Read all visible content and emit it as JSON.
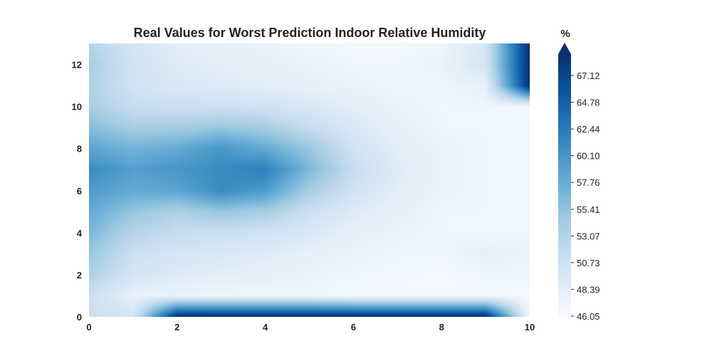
{
  "chart_data": {
    "type": "heatmap",
    "title": "Real Values for Worst Prediction Indoor Relative Humidity",
    "xlabel": "",
    "ylabel": "",
    "xlim": [
      0,
      10
    ],
    "ylim": [
      0,
      13
    ],
    "x_ticks": [
      "0",
      "2",
      "4",
      "6",
      "8",
      "10"
    ],
    "y_ticks": [
      "0",
      "2",
      "4",
      "6",
      "8",
      "10",
      "12"
    ],
    "x": [
      0,
      1,
      2,
      3,
      4,
      5,
      6,
      7,
      8,
      9,
      10
    ],
    "y": [
      0,
      1,
      2,
      3,
      4,
      5,
      6,
      7,
      8,
      9,
      10,
      11,
      12,
      13
    ],
    "z": [
      [
        51.0,
        50.0,
        69.0,
        69.0,
        69.0,
        69.0,
        69.0,
        69.0,
        69.0,
        69.0,
        47.0
      ],
      [
        51.0,
        48.0,
        47.5,
        47.0,
        47.0,
        47.0,
        46.5,
        46.5,
        46.5,
        46.5,
        46.5
      ],
      [
        53.5,
        50.0,
        49.0,
        48.5,
        48.0,
        47.5,
        47.0,
        46.8,
        46.5,
        47.0,
        47.0
      ],
      [
        55.0,
        51.0,
        50.0,
        49.5,
        49.0,
        48.0,
        47.5,
        47.0,
        47.0,
        48.0,
        47.5
      ],
      [
        56.5,
        53.0,
        51.5,
        51.0,
        50.5,
        49.5,
        48.0,
        47.5,
        47.0,
        47.0,
        47.0
      ],
      [
        58.0,
        55.0,
        53.5,
        55.0,
        54.0,
        51.0,
        49.0,
        48.0,
        47.0,
        47.0,
        47.0
      ],
      [
        59.5,
        58.0,
        58.5,
        61.0,
        59.5,
        54.0,
        50.5,
        48.5,
        47.5,
        47.0,
        47.0
      ],
      [
        61.0,
        59.0,
        60.0,
        61.0,
        62.0,
        56.5,
        51.5,
        49.0,
        47.5,
        47.0,
        47.0
      ],
      [
        58.5,
        57.0,
        58.0,
        60.0,
        58.0,
        55.0,
        50.5,
        48.5,
        47.5,
        47.0,
        47.0
      ],
      [
        56.0,
        54.0,
        54.0,
        55.0,
        54.0,
        51.5,
        49.5,
        48.0,
        47.0,
        47.0,
        47.0
      ],
      [
        54.0,
        51.5,
        51.0,
        51.0,
        50.5,
        49.5,
        48.5,
        47.5,
        47.0,
        47.0,
        46.5
      ],
      [
        53.5,
        50.5,
        49.5,
        49.0,
        48.5,
        48.0,
        47.5,
        47.0,
        47.0,
        48.0,
        69.0
      ],
      [
        54.0,
        50.5,
        49.0,
        48.5,
        48.0,
        47.5,
        47.0,
        47.0,
        47.5,
        50.0,
        69.0
      ],
      [
        53.0,
        50.0,
        48.5,
        48.0,
        47.5,
        47.0,
        46.5,
        46.5,
        47.0,
        50.0,
        69.0
      ]
    ],
    "colorbar": {
      "unit": "%",
      "min": 46.05,
      "max": 69.0,
      "ticks": [
        "46.05",
        "48.39",
        "50.73",
        "53.07",
        "55.41",
        "57.76",
        "60.10",
        "62.44",
        "64.78",
        "67.12"
      ],
      "extend": "max"
    },
    "colormap": "Blues",
    "grid": false
  }
}
